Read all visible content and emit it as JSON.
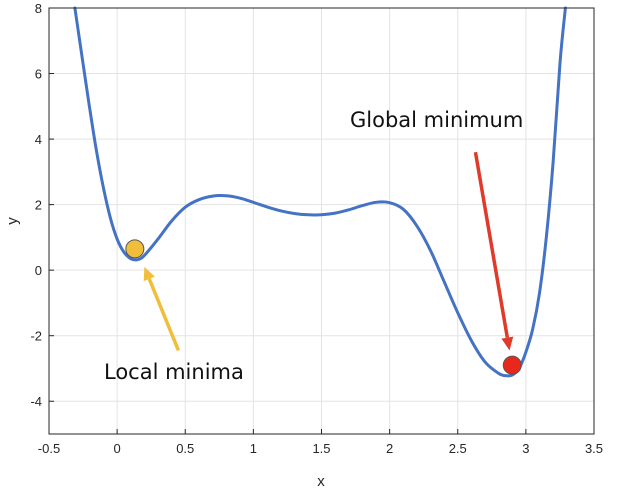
{
  "chart_data": {
    "type": "line",
    "xlabel": "x",
    "ylabel": "y",
    "xlim": [
      -0.5,
      3.5
    ],
    "ylim": [
      -5,
      8
    ],
    "xticks": [
      "-0.5",
      "0",
      "0.5",
      "1",
      "1.5",
      "2",
      "2.5",
      "3",
      "3.5"
    ],
    "yticks": [
      "-4",
      "-2",
      "0",
      "2",
      "4",
      "6",
      "8"
    ],
    "grid": true,
    "series": [
      {
        "color": "#4472C4",
        "x": [
          -0.31,
          -0.25,
          -0.2,
          -0.15,
          -0.1,
          -0.05,
          0.0,
          0.05,
          0.1,
          0.15,
          0.2,
          0.3,
          0.4,
          0.5,
          0.6,
          0.7,
          0.8,
          0.9,
          1.0,
          1.1,
          1.2,
          1.3,
          1.4,
          1.5,
          1.6,
          1.7,
          1.8,
          1.9,
          2.0,
          2.1,
          2.2,
          2.3,
          2.4,
          2.5,
          2.6,
          2.7,
          2.8,
          2.85,
          2.9,
          2.95,
          3.0,
          3.05,
          3.1,
          3.15,
          3.2,
          3.25,
          3.29
        ],
        "y": [
          8.0,
          6.3,
          4.9,
          3.6,
          2.5,
          1.6,
          0.95,
          0.55,
          0.35,
          0.32,
          0.45,
          0.95,
          1.5,
          1.92,
          2.15,
          2.26,
          2.27,
          2.2,
          2.07,
          1.93,
          1.81,
          1.73,
          1.69,
          1.69,
          1.74,
          1.84,
          1.97,
          2.07,
          2.06,
          1.86,
          1.35,
          0.6,
          -0.35,
          -1.3,
          -2.15,
          -2.8,
          -3.15,
          -3.22,
          -3.2,
          -3.0,
          -2.5,
          -1.8,
          -0.7,
          1.0,
          3.3,
          6.3,
          8.0
        ]
      }
    ],
    "markers": [
      {
        "x": 0.13,
        "y": 0.65,
        "color": "#F0BE3A"
      },
      {
        "x": 2.9,
        "y": -2.9,
        "color": "#E8281C"
      }
    ],
    "annotations": [
      {
        "text": "Local minima",
        "color": "#F0BE3A",
        "tail": [
          0.45,
          -2.45
        ],
        "head": [
          0.2,
          0.1
        ]
      },
      {
        "text": "Global minimum",
        "color": "#E03A2A",
        "tail": [
          2.63,
          3.6
        ],
        "head": [
          2.88,
          -2.45
        ]
      }
    ]
  }
}
